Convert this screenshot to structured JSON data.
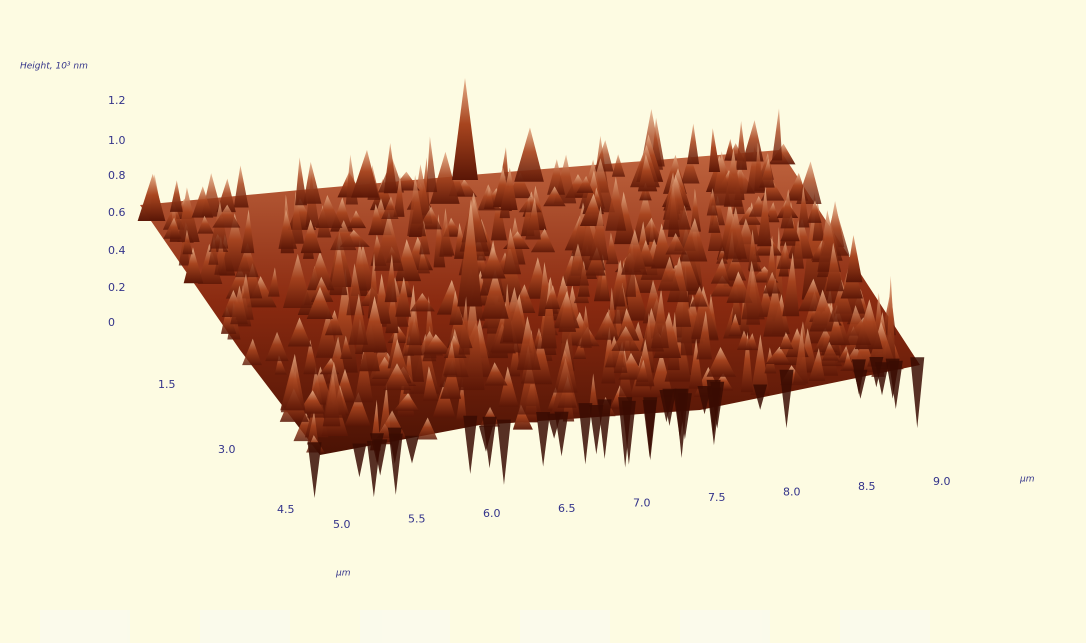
{
  "z_axis": {
    "label": "Height, 10³ nm",
    "ticks": [
      "1.2",
      "1.0",
      "0.8",
      "0.6",
      "0.4",
      "0.2",
      "0"
    ]
  },
  "depth_axis": {
    "ticks": [
      "1.5",
      "3.0",
      "4.5"
    ],
    "unit": "µm"
  },
  "x_axis": {
    "ticks": [
      "5.0",
      "5.5",
      "6.0",
      "6.5",
      "7.0",
      "7.5",
      "8.0",
      "8.5",
      "9.0"
    ],
    "unit": "µm"
  }
}
